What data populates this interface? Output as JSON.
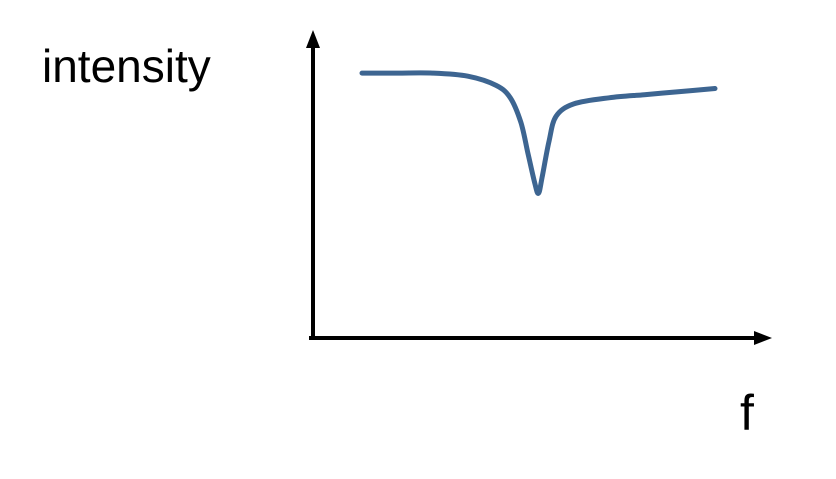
{
  "diagram": {
    "y_axis_label": "intensity",
    "x_axis_label": "f",
    "curve_color": "#3d6591",
    "axis_color": "#000000"
  },
  "chart_data": {
    "type": "line",
    "title": "",
    "xlabel": "f",
    "ylabel": "intensity",
    "grid": false,
    "legend": "none",
    "series": [
      {
        "description_shape": "flat baseline with a single sharp absorption dip",
        "x": [
          0.0,
          0.1,
          0.2,
          0.3,
          0.38,
          0.42,
          0.45,
          0.47,
          0.49,
          0.5,
          0.51,
          0.53,
          0.55,
          0.6,
          0.7,
          0.8,
          0.9,
          1.0
        ],
        "values": [
          0.86,
          0.86,
          0.86,
          0.85,
          0.82,
          0.78,
          0.7,
          0.6,
          0.5,
          0.47,
          0.52,
          0.64,
          0.72,
          0.76,
          0.78,
          0.79,
          0.8,
          0.81
        ]
      }
    ]
  }
}
